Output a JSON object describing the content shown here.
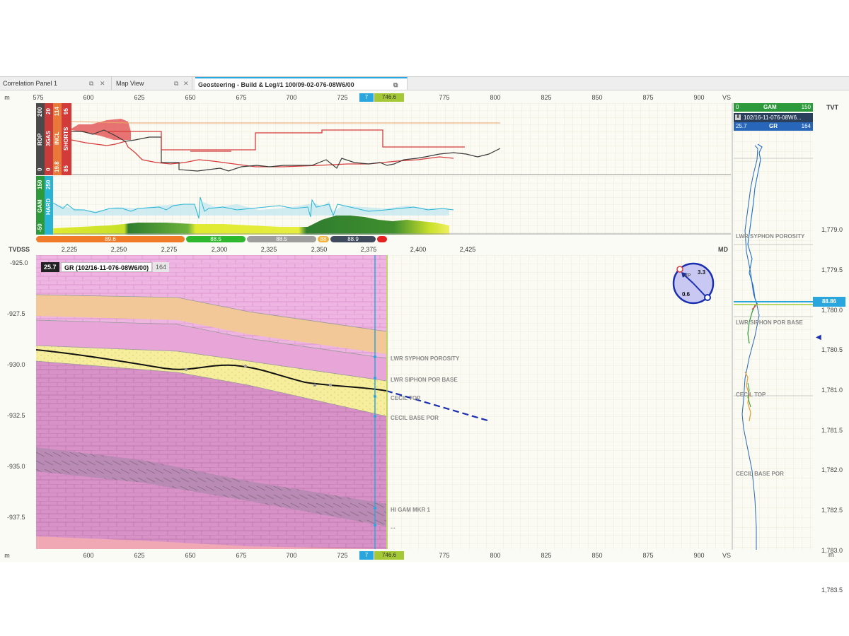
{
  "tabs": [
    {
      "label": "Correlation Panel 1",
      "active": false
    },
    {
      "label": "Map View",
      "active": false
    },
    {
      "label": "Geosteering - Build & Leg#1 100/09-02-076-08W6/00",
      "active": true
    }
  ],
  "top_ruler": {
    "unit": "m",
    "start": "575",
    "ticks": [
      "600",
      "625",
      "650",
      "675",
      "700",
      "725",
      "775",
      "800",
      "825",
      "850",
      "875",
      "900"
    ],
    "end_label": "VS",
    "cursor_blue": "7",
    "cursor_green": "746.6"
  },
  "bottom_ruler": {
    "unit": "m",
    "ticks": [
      "600",
      "625",
      "650",
      "675",
      "700",
      "725",
      "775",
      "800",
      "825",
      "850",
      "875",
      "900"
    ],
    "end_label": "VS",
    "cursor_blue": "7",
    "cursor_green": "746.6"
  },
  "drill_track": {
    "curves": [
      {
        "name": "ROP",
        "min": "0",
        "max": "200",
        "color": "#3a3a3a"
      },
      {
        "name": "3GAS",
        "min": "0",
        "max": "20",
        "color": "#c93a3a"
      },
      {
        "name": "INCL",
        "min": "19.8",
        "max": "114",
        "color": "#e8793a"
      },
      {
        "name": "SHORTS",
        "min": "85",
        "max": "95",
        "color": "#d33a3a"
      }
    ]
  },
  "gamma_track": {
    "curves": [
      {
        "name": "GAM",
        "min": "-50",
        "max": "150",
        "color": "#2c9a3a"
      },
      {
        "name": "HARD",
        "min": "",
        "max": "250",
        "color": "#28b4d2"
      }
    ]
  },
  "dip_bar": [
    {
      "value": "89.6",
      "color": "#f07c2a"
    },
    {
      "value": "88.5",
      "color": "#2eb82e"
    },
    {
      "value": "88.5",
      "color": "#9e9e9e"
    },
    {
      "value": "88",
      "color": "#f2b23a"
    },
    {
      "value": "88.9",
      "color": "#3f4b5c"
    },
    {
      "value": "",
      "color": "#e52020"
    }
  ],
  "section": {
    "y_axis_label": "TVDSS",
    "x_axis_label": "MD",
    "md_ticks": [
      "2,225",
      "2,250",
      "2,275",
      "2,300",
      "2,325",
      "2,350",
      "2,375",
      "2,400",
      "2,425"
    ],
    "depth_ticks": [
      "-925.0",
      "-927.5",
      "-930.0",
      "-932.5",
      "-935.0",
      "-937.5"
    ],
    "log_legend": {
      "value": "25.7",
      "name": "GR (102/16-11-076-08W6/00)",
      "max": "164"
    },
    "markers": [
      "LWR SYPHON POROSITY",
      "LWR SIPHON POR BASE",
      "CECIL TOP",
      "CECIL BASE POR",
      "HI GAM MKR 1",
      "..."
    ],
    "compass": {
      "top": "3.3",
      "label": "WP",
      "bottom": "0.6"
    }
  },
  "offset_well": {
    "tvt_label": "TVT",
    "unit": "m",
    "gam_header": {
      "min": "0",
      "name": "GAM",
      "max": "150"
    },
    "well_name": "102/16-11-076-08W6...",
    "gr_header": {
      "value": "25.7",
      "name": "GR",
      "max": "164"
    },
    "tvt_ticks": [
      "1,779.0",
      "1,779.5",
      "1,780.0",
      "1,780.5",
      "1,781.0",
      "1,781.5",
      "1,782.0",
      "1,782.5",
      "1,783.0",
      "1,783.5"
    ],
    "markers": [
      "LWR SYPHON POROSITY",
      "LWR SIPHON POR BASE",
      "CECIL TOP",
      "CECIL BASE POR"
    ],
    "current_value": "88.86"
  },
  "colors": {
    "accent_blue": "#2aa6df",
    "accent_green": "#a5c936",
    "formation_pink": "#e8a6d8",
    "sand_yellow": "#f6ee9c",
    "wellpath": "#111111",
    "projection": "#1a2fb0"
  }
}
